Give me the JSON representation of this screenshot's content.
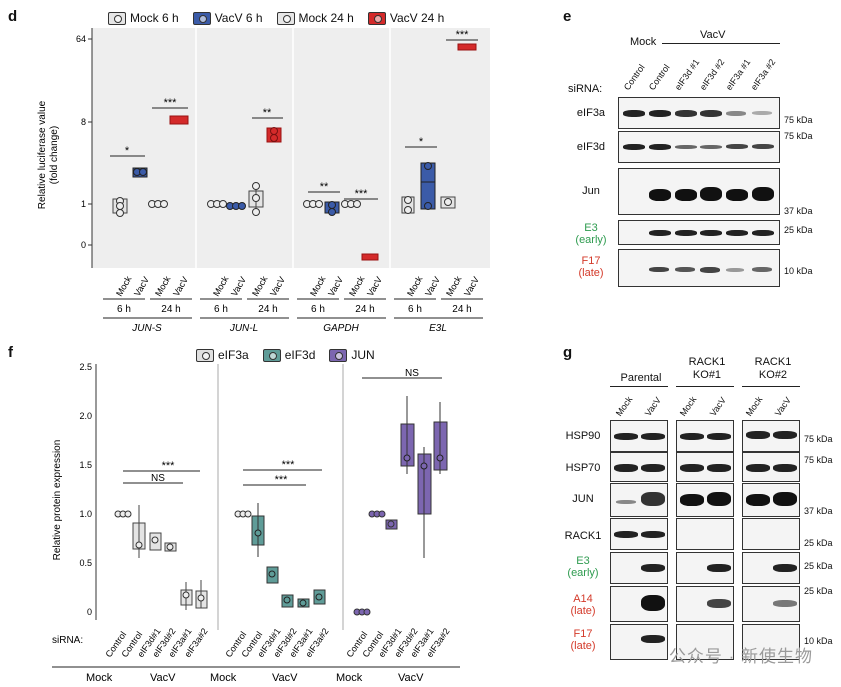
{
  "panel_d": {
    "label": "d",
    "legend": [
      {
        "name": "Mock 6 h",
        "color": "#e6e6e6"
      },
      {
        "name": "VacV 6 h",
        "color": "#3b5ba8"
      },
      {
        "name": "Mock 24 h",
        "color": "#e6e6e6"
      },
      {
        "name": "VacV 24 h",
        "color": "#d42a2a"
      }
    ],
    "ylabel_line1": "Relative luciferase value",
    "ylabel_line2": "(fold change)",
    "yticks": [
      "64",
      "8",
      "1",
      "0"
    ],
    "xgroup_cells": [
      "Mock",
      "VacV",
      "Mock",
      "VacV"
    ],
    "xgroup_times": [
      "6 h",
      "24 h"
    ],
    "genes": [
      "JUN-S",
      "JUN-L",
      "GAPDH",
      "E3L"
    ],
    "sig_jun_s": [
      "*",
      "***"
    ],
    "sig_jun_l": [
      "**"
    ],
    "sig_gapdh": [
      "**",
      "***"
    ],
    "sig_e3l": [
      "*",
      "***"
    ]
  },
  "panel_e": {
    "label": "e",
    "header_mock": "Mock",
    "header_vacv": "VacV",
    "sirna_label": "siRNA:",
    "lanes": [
      "Control",
      "Control",
      "eIF3d #1",
      "eIF3d #2",
      "eIF3a #1",
      "eIF3a #2"
    ],
    "rows": [
      {
        "name": "eIF3a",
        "kda": "75 kDa"
      },
      {
        "name": "eIF3d",
        "kda": "75 kDa"
      },
      {
        "name": "Jun",
        "kda": "37 kDa"
      },
      {
        "name": "E3",
        "sub": "(early)",
        "kda": "25 kDa"
      },
      {
        "name": "F17",
        "sub": "(late)",
        "kda": "10 kDa"
      }
    ]
  },
  "panel_f": {
    "label": "f",
    "legend": [
      {
        "name": "eIF3a",
        "color": "#e0e0e0"
      },
      {
        "name": "eIF3d",
        "color": "#5f9c98"
      },
      {
        "name": "JUN",
        "color": "#7c66b0"
      }
    ],
    "ylabel": "Relative protein expression",
    "yticks": [
      "0",
      "0.5",
      "1.0",
      "1.5",
      "2.0",
      "2.5"
    ],
    "sirna_label": "siRNA:",
    "subpanels": [
      {
        "lanes": [
          "Control",
          "Control",
          "eIF3d#1",
          "eIF3d#2",
          "eIF3a#1",
          "eIF3a#2"
        ]
      },
      {
        "lanes": [
          "Control",
          "Control",
          "eIF3d#1",
          "eIF3d#2",
          "eIF3a#1",
          "eIF3a#2"
        ]
      },
      {
        "lanes": [
          "Control",
          "Control",
          "eIF3d#1",
          "eIF3d#2",
          "eIF3a#1",
          "eIF3a#2"
        ]
      }
    ],
    "cond_mock": "Mock",
    "cond_vacv": "VacV",
    "sig_a": [
      "***",
      "NS"
    ],
    "sig_d": [
      "***",
      "***"
    ],
    "sig_j": [
      "NS"
    ]
  },
  "panel_g": {
    "label": "g",
    "groups": [
      "Parental",
      "RACK1\nKO#1",
      "RACK1\nKO#2"
    ],
    "group_line1": [
      "Parental",
      "RACK1",
      "RACK1"
    ],
    "group_line2": [
      "",
      "KO#1",
      "KO#2"
    ],
    "lanes": [
      "Mock",
      "VacV",
      "Mock",
      "VacV",
      "Mock",
      "VacV"
    ],
    "rows": [
      {
        "name": "HSP90",
        "kda": "75 kDa"
      },
      {
        "name": "HSP70",
        "kda": "75 kDa"
      },
      {
        "name": "JUN",
        "kda": "37 kDa"
      },
      {
        "name": "RACK1",
        "kda": "25 kDa"
      },
      {
        "name": "E3",
        "sub": "(early)",
        "kda": "25 kDa"
      },
      {
        "name": "A14",
        "sub": "(late)",
        "kda": "25 kDa"
      },
      {
        "name": "F17",
        "sub": "(late)",
        "kda": "10 kDa"
      }
    ]
  },
  "watermark": "公众号 · 新使生物",
  "chart_data": [
    {
      "type": "scatter",
      "title": "",
      "ylabel": "Relative luciferase value (fold change)",
      "yscale": "log2",
      "yticks": [
        "0",
        "1",
        "8",
        "64"
      ],
      "categories": [
        "JUN-S",
        "JUN-L",
        "GAPDH",
        "E3L"
      ],
      "series": [
        {
          "name": "Mock 6 h",
          "values": [
            1.0,
            1.0,
            1.0,
            1.0
          ]
        },
        {
          "name": "VacV 6 h",
          "values": [
            3.0,
            0.95,
            0.9,
            2.2
          ]
        },
        {
          "name": "Mock 24 h",
          "values": [
            1.0,
            1.2,
            1.0,
            1.0
          ]
        },
        {
          "name": "VacV 24 h",
          "values": [
            8.0,
            5.0,
            0.2,
            64.0
          ]
        }
      ]
    },
    {
      "type": "box",
      "title": "",
      "ylabel": "Relative protein expression",
      "ylim": [
        0,
        2.5
      ],
      "categories": [
        "Mock Control",
        "VacV Control",
        "VacV eIF3d#1",
        "VacV eIF3d#2",
        "VacV eIF3a#1",
        "VacV eIF3a#2"
      ],
      "series": [
        {
          "name": "eIF3a",
          "values": [
            1.0,
            0.8,
            0.75,
            0.67,
            0.17,
            0.15
          ]
        },
        {
          "name": "eIF3d",
          "values": [
            1.0,
            0.82,
            0.38,
            0.12,
            0.09,
            0.16
          ]
        },
        {
          "name": "JUN",
          "values": [
            0.0,
            1.0,
            0.88,
            1.58,
            1.4,
            1.58
          ]
        }
      ]
    }
  ]
}
